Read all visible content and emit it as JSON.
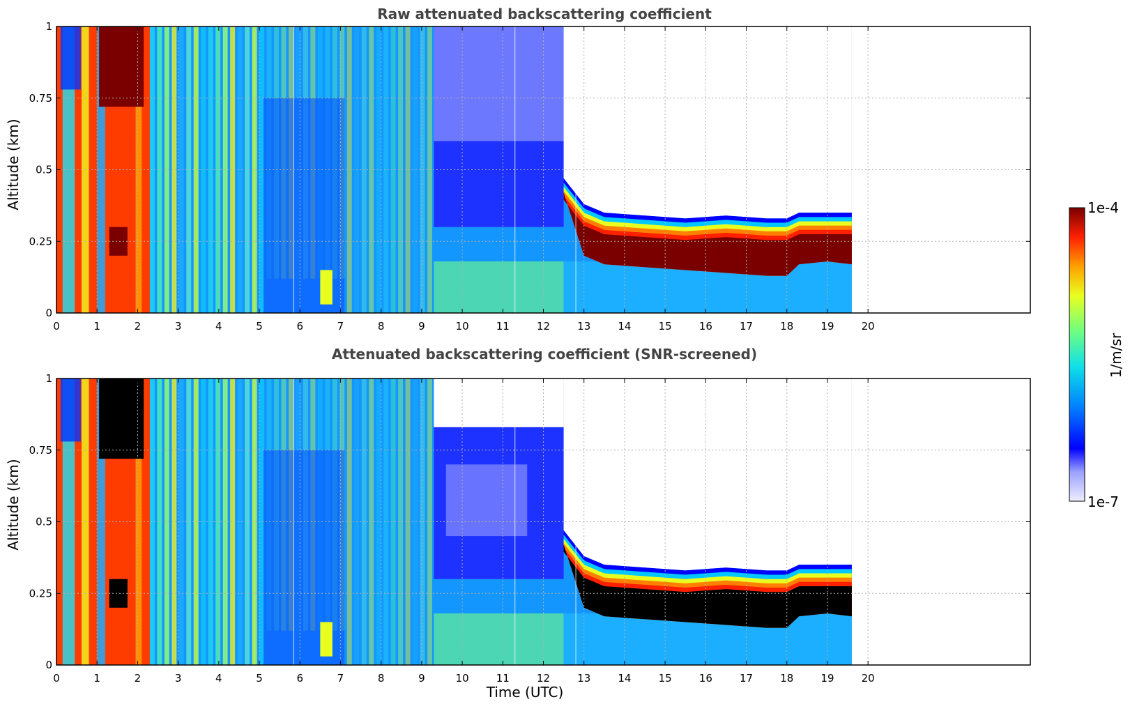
{
  "chart_data": [
    {
      "type": "heatmap",
      "title": "Raw attenuated backscattering coefficient",
      "xlabel": "",
      "ylabel": "Altitude (km)",
      "xlim": [
        0,
        24
      ],
      "ylim": [
        0,
        1
      ],
      "xticks": [
        0,
        1,
        2,
        3,
        4,
        5,
        6,
        7,
        8,
        9,
        10,
        11,
        12,
        13,
        14,
        15,
        16,
        17,
        18,
        19,
        20
      ],
      "yticks": [
        "0",
        "0.25",
        "0.5",
        "0.75",
        "1"
      ],
      "data_end_time": 19.6,
      "grid": true,
      "layers": [
        {
          "name": "early high-backscatter region",
          "t_start": 0,
          "t_end": 2.3,
          "alt_min": 0,
          "alt_max": 1,
          "level": "high"
        },
        {
          "name": "aerosol layer",
          "t_start": 2.3,
          "t_end": 9.3,
          "alt_min": 0,
          "alt_max": 1,
          "level": "moderate"
        },
        {
          "name": "noisy upper region",
          "t_start": 9.3,
          "t_end": 12.5,
          "alt_min": 0.35,
          "alt_max": 1,
          "level": "noise"
        },
        {
          "name": "stratus cloud layer",
          "t_start": 12.5,
          "t_end": 19.6,
          "alt_min": 0.15,
          "alt_max": 0.35,
          "level": "saturated"
        }
      ],
      "cloud_base_km": [
        [
          12.5,
          0.42
        ],
        [
          13.0,
          0.2
        ],
        [
          13.5,
          0.17
        ],
        [
          14.5,
          0.16
        ],
        [
          15.5,
          0.15
        ],
        [
          16.5,
          0.14
        ],
        [
          17.5,
          0.13
        ],
        [
          18.0,
          0.13
        ],
        [
          18.3,
          0.17
        ],
        [
          19.0,
          0.18
        ],
        [
          19.6,
          0.17
        ]
      ],
      "cloud_top_km": [
        [
          12.5,
          0.47
        ],
        [
          13.0,
          0.38
        ],
        [
          13.5,
          0.35
        ],
        [
          14.5,
          0.34
        ],
        [
          15.5,
          0.33
        ],
        [
          16.5,
          0.34
        ],
        [
          17.5,
          0.33
        ],
        [
          18.0,
          0.33
        ],
        [
          18.3,
          0.35
        ],
        [
          19.0,
          0.35
        ],
        [
          19.6,
          0.35
        ]
      ]
    },
    {
      "type": "heatmap",
      "title": "Attenuated backscattering coefficient (SNR-screened)",
      "xlabel": "Time (UTC)",
      "ylabel": "Altitude (km)",
      "xlim": [
        0,
        24
      ],
      "ylim": [
        0,
        1
      ],
      "xticks": [
        0,
        1,
        2,
        3,
        4,
        5,
        6,
        7,
        8,
        9,
        10,
        11,
        12,
        13,
        14,
        15,
        16,
        17,
        18,
        19,
        20
      ],
      "yticks": [
        "0",
        "0.25",
        "0.5",
        "0.75",
        "1"
      ],
      "data_end_time": 19.6,
      "grid": true,
      "screened_out_color": "#ffffff",
      "saturated_color": "#000000"
    }
  ],
  "colorbar": {
    "label": "1/m/sr",
    "max_label": "1e-4",
    "min_label": "1e-7",
    "scale": "log",
    "colors": [
      "#eeeeff",
      "#0000ff",
      "#00a0ff",
      "#20e8e0",
      "#70ff80",
      "#e8ff20",
      "#ffa000",
      "#ff2000",
      "#7a0000"
    ]
  }
}
